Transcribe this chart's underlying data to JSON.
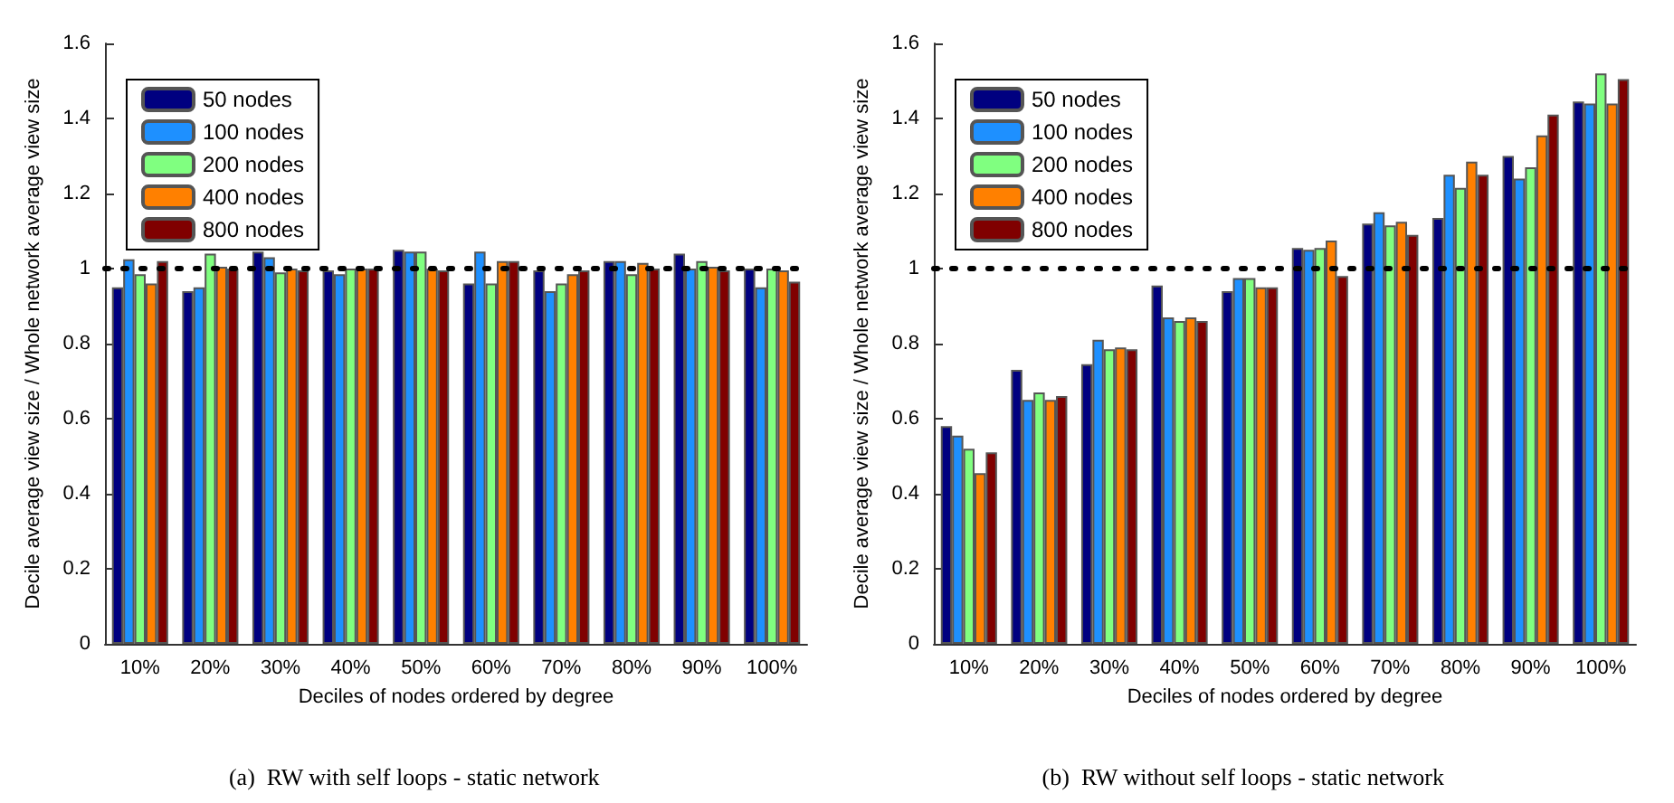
{
  "chart_data": [
    {
      "type": "bar",
      "xlabel": "Deciles of nodes ordered by degree",
      "ylabel": "Decile average view size / Whole network average view size",
      "annotations": [
        "(a)  RW with self loops - static network"
      ],
      "categories": [
        "10%",
        "20%",
        "30%",
        "40%",
        "50%",
        "60%",
        "70%",
        "80%",
        "90%",
        "100%"
      ],
      "ylim": [
        0,
        1.6
      ],
      "yticks": [
        0,
        0.2,
        0.4,
        0.6,
        0.8,
        1,
        1.2,
        1.4,
        1.6
      ],
      "grid": false,
      "legend": "top left",
      "ref_lines": [
        {
          "axis": "y",
          "value": 1,
          "color": "#000000",
          "line_style": "dotted"
        }
      ],
      "series": [
        {
          "name": "50 nodes",
          "color": "#000080",
          "values": [
            0.95,
            0.94,
            1.045,
            0.995,
            1.05,
            0.96,
            0.995,
            1.02,
            1.04,
            1.0
          ]
        },
        {
          "name": "100 nodes",
          "color": "#1e90ff",
          "values": [
            1.025,
            0.95,
            1.03,
            0.985,
            1.045,
            1.045,
            0.94,
            1.02,
            1.0,
            0.95
          ]
        },
        {
          "name": "200 nodes",
          "color": "#80ff80",
          "values": [
            0.985,
            1.04,
            0.99,
            1.0,
            1.045,
            0.96,
            0.96,
            0.985,
            1.02,
            1.0
          ]
        },
        {
          "name": "400 nodes",
          "color": "#ff8000",
          "values": [
            0.96,
            1.005,
            1.0,
            1.0,
            1.0,
            1.02,
            0.985,
            1.015,
            1.005,
            0.995
          ]
        },
        {
          "name": "800 nodes",
          "color": "#800000",
          "values": [
            1.02,
            1.0,
            0.995,
            1.0,
            0.995,
            1.02,
            0.995,
            1.0,
            0.995,
            0.965
          ]
        }
      ]
    },
    {
      "type": "bar",
      "xlabel": "Deciles of nodes ordered by degree",
      "ylabel": "Decile average view size / Whole network average view size",
      "annotations": [
        "(b)  RW without self loops - static network"
      ],
      "categories": [
        "10%",
        "20%",
        "30%",
        "40%",
        "50%",
        "60%",
        "70%",
        "80%",
        "90%",
        "100%"
      ],
      "ylim": [
        0,
        1.6
      ],
      "yticks": [
        0,
        0.2,
        0.4,
        0.6,
        0.8,
        1,
        1.2,
        1.4,
        1.6
      ],
      "grid": false,
      "legend": "top left",
      "ref_lines": [
        {
          "axis": "y",
          "value": 1,
          "color": "#000000",
          "line_style": "dotted"
        }
      ],
      "series": [
        {
          "name": "50 nodes",
          "color": "#000080",
          "values": [
            0.58,
            0.73,
            0.745,
            0.955,
            0.94,
            1.055,
            1.12,
            1.135,
            1.3,
            1.445
          ]
        },
        {
          "name": "100 nodes",
          "color": "#1e90ff",
          "values": [
            0.555,
            0.65,
            0.81,
            0.87,
            0.975,
            1.05,
            1.15,
            1.25,
            1.24,
            1.44
          ]
        },
        {
          "name": "200 nodes",
          "color": "#80ff80",
          "values": [
            0.52,
            0.67,
            0.785,
            0.86,
            0.975,
            1.055,
            1.115,
            1.215,
            1.27,
            1.52
          ]
        },
        {
          "name": "400 nodes",
          "color": "#ff8000",
          "values": [
            0.455,
            0.65,
            0.79,
            0.87,
            0.95,
            1.075,
            1.125,
            1.285,
            1.355,
            1.44
          ]
        },
        {
          "name": "800 nodes",
          "color": "#800000",
          "values": [
            0.51,
            0.66,
            0.785,
            0.86,
            0.95,
            0.98,
            1.09,
            1.25,
            1.41,
            1.505
          ]
        }
      ]
    }
  ]
}
